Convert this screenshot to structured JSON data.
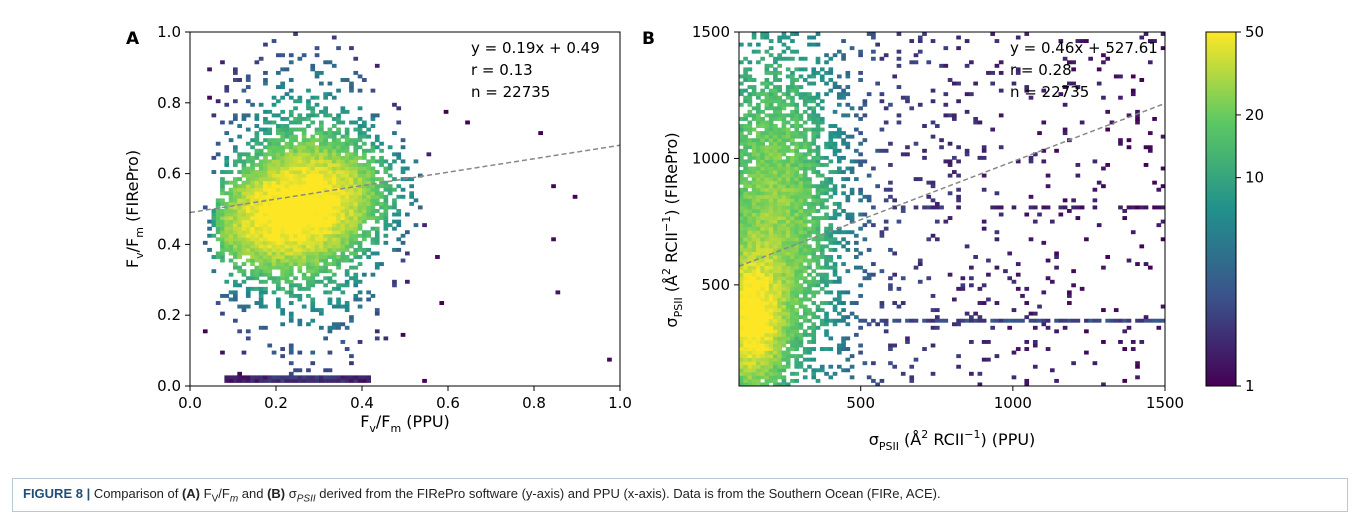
{
  "chart_data": [
    {
      "type": "heatmap",
      "panel": "A",
      "xlabel": "F<sub>v</sub>/F<sub>m</sub> (PPU)",
      "ylabel": "F<sub>v</sub>/F<sub>m</sub> (FIRePro)",
      "xlim": [
        0.0,
        1.0
      ],
      "ylim": [
        0.0,
        1.0
      ],
      "xticks": [
        "0.0",
        "0.2",
        "0.4",
        "0.6",
        "0.8",
        "1.0"
      ],
      "yticks": [
        "0.0",
        "0.2",
        "0.4",
        "0.6",
        "0.8",
        "1.0"
      ],
      "fit": {
        "slope": 0.19,
        "intercept": 0.49
      },
      "annotations": [
        "y = 0.19x + 0.49",
        "r = 0.13",
        "n = 22735"
      ],
      "density_peak": {
        "x": 0.22,
        "y": 0.49
      },
      "grid": false
    },
    {
      "type": "heatmap",
      "panel": "B",
      "xlabel": "σ<sub>PSII</sub> (Å<sup>2</sup> RCII<sup>−1</sup>) (PPU)",
      "ylabel": "σ<sub>PSII</sub> (Å<sup>2</sup> RCII<sup>−1</sup>) (FIRePro)",
      "xlim": [
        100,
        1500
      ],
      "ylim": [
        100,
        1500
      ],
      "xticks": [
        "500",
        "1000",
        "1500"
      ],
      "yticks": [
        "500",
        "1000",
        "1500"
      ],
      "fit": {
        "slope": 0.46,
        "intercept": 527.61
      },
      "annotations": [
        "y = 0.46x + 527.61",
        "r = 0.28",
        "n = 22735"
      ],
      "density_peak": {
        "x": 140,
        "y": 350
      },
      "grid": false,
      "colorbar": {
        "scale": "log",
        "range": [
          1,
          50
        ],
        "ticks": [
          "1",
          "10",
          "20",
          "50"
        ],
        "colormap": "viridis"
      }
    }
  ],
  "caption": {
    "label": "FIGURE 8 |",
    "segments": [
      {
        "t": " Comparison of "
      },
      {
        "t": "(A)",
        "b": true
      },
      {
        "t": " F"
      },
      {
        "t": "V",
        "sub": true
      },
      {
        "t": "/F"
      },
      {
        "t": "m",
        "sub": true,
        "i": true
      },
      {
        "t": " and "
      },
      {
        "t": "(B)",
        "b": true
      },
      {
        "t": " σ"
      },
      {
        "t": "PSII",
        "sub": true,
        "i": true
      },
      {
        "t": " derived from the FIRePro software (y-axis) and PPU (x-axis). Data is from the Southern Ocean (FIRe, ACE)."
      }
    ]
  },
  "colors": {
    "viridis": [
      "#440154",
      "#3b528b",
      "#21918c",
      "#5ec962",
      "#fde725"
    ],
    "fit_line": "#888888",
    "caption_border": "#b9c8d6"
  }
}
